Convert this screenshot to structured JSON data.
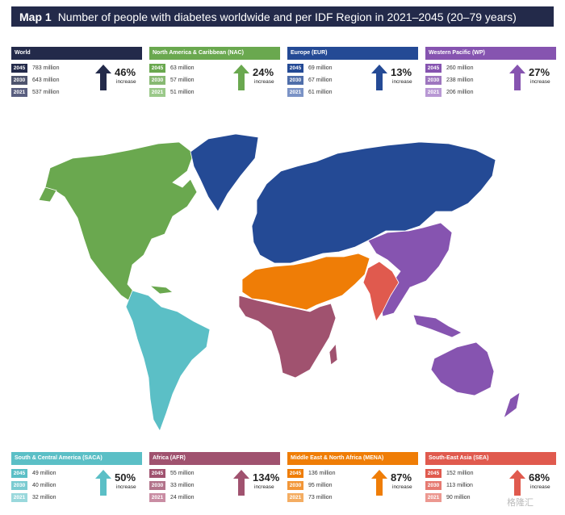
{
  "title": {
    "label": "Map 1",
    "text": "Number of people with diabetes worldwide and per IDF Region in 2021–2045 (20–79 years)"
  },
  "regions_top": [
    {
      "name": "World",
      "color": "#232a4a",
      "light": "#5a5f80",
      "rows": [
        {
          "year": "2045",
          "value": "783 million"
        },
        {
          "year": "2030",
          "value": "643 million"
        },
        {
          "year": "2021",
          "value": "537 million"
        }
      ],
      "pct": "46%",
      "inc": "increase"
    },
    {
      "name": "North America & Caribbean (NAC)",
      "color": "#6aa84f",
      "light": "#9bc98a",
      "rows": [
        {
          "year": "2045",
          "value": "63 million"
        },
        {
          "year": "2030",
          "value": "57 million"
        },
        {
          "year": "2021",
          "value": "51 million"
        }
      ],
      "pct": "24%",
      "inc": "increase"
    },
    {
      "name": "Europe (EUR)",
      "color": "#244a95",
      "light": "#7b93c6",
      "rows": [
        {
          "year": "2045",
          "value": "69 million"
        },
        {
          "year": "2030",
          "value": "67 million"
        },
        {
          "year": "2021",
          "value": "61 million"
        }
      ],
      "pct": "13%",
      "inc": "increase"
    },
    {
      "name": "Western Pacific (WP)",
      "color": "#8654b0",
      "light": "#b898d4",
      "rows": [
        {
          "year": "2045",
          "value": "260 million"
        },
        {
          "year": "2030",
          "value": "238 million"
        },
        {
          "year": "2021",
          "value": "206 million"
        }
      ],
      "pct": "27%",
      "inc": "increase"
    }
  ],
  "regions_bottom": [
    {
      "name": "South & Central America (SACA)",
      "color": "#5bbfc6",
      "light": "#9ad8dc",
      "rows": [
        {
          "year": "2045",
          "value": "49 million"
        },
        {
          "year": "2030",
          "value": "40 million"
        },
        {
          "year": "2021",
          "value": "32 million"
        }
      ],
      "pct": "50%",
      "inc": "increase"
    },
    {
      "name": "Africa (AFR)",
      "color": "#a0526f",
      "light": "#c98da3",
      "rows": [
        {
          "year": "2045",
          "value": "55 million"
        },
        {
          "year": "2030",
          "value": "33 million"
        },
        {
          "year": "2021",
          "value": "24 million"
        }
      ],
      "pct": "134%",
      "inc": "increase"
    },
    {
      "name": "Middle East & North Africa (MENA)",
      "color": "#ef7d06",
      "light": "#f4ad62",
      "rows": [
        {
          "year": "2045",
          "value": "136 million"
        },
        {
          "year": "2030",
          "value": "95 million"
        },
        {
          "year": "2021",
          "value": "73 million"
        }
      ],
      "pct": "87%",
      "inc": "increase"
    },
    {
      "name": "South-East Asia (SEA)",
      "color": "#e05a4e",
      "light": "#ec9890",
      "rows": [
        {
          "year": "2045",
          "value": "152 million"
        },
        {
          "year": "2030",
          "value": "113 million"
        },
        {
          "year": "2021",
          "value": "90 million"
        }
      ],
      "pct": "68%",
      "inc": "increase"
    }
  ],
  "map_colors": {
    "nac": "#6aa84f",
    "eur": "#244a95",
    "wp": "#8654b0",
    "saca": "#5bbfc6",
    "afr": "#a0526f",
    "mena": "#ef7d06",
    "sea": "#e05a4e",
    "border": "#ffffff"
  },
  "watermark": "格隆汇"
}
